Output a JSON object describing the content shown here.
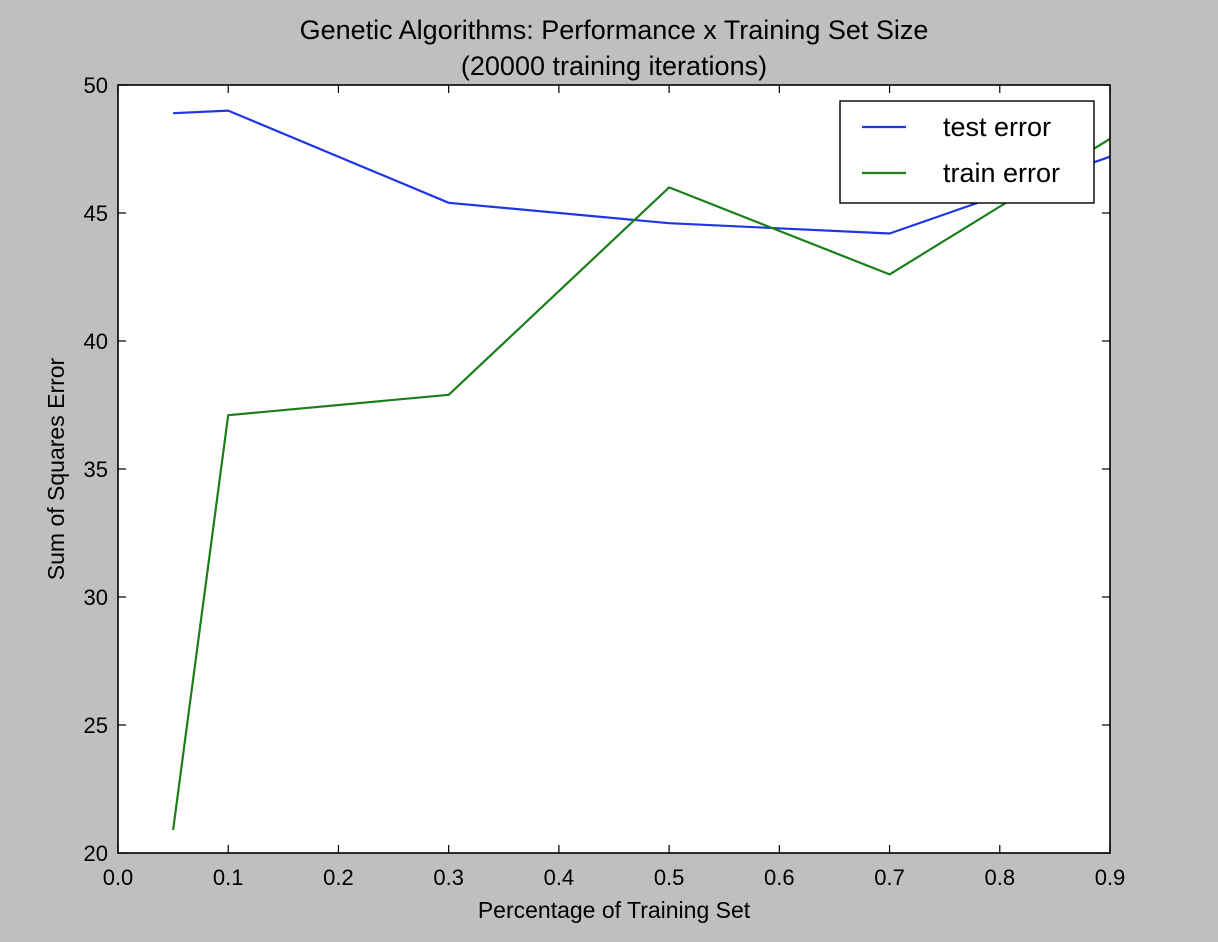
{
  "chart_data": {
    "type": "line",
    "title": "Genetic Algorithms: Performance x Training Set Size",
    "subtitle": "(20000 training iterations)",
    "xlabel": "Percentage of Training Set",
    "ylabel": "Sum of Squares Error",
    "xlim": [
      0.0,
      0.9
    ],
    "ylim": [
      20,
      50
    ],
    "xticks": [
      "0.0",
      "0.1",
      "0.2",
      "0.3",
      "0.4",
      "0.5",
      "0.6",
      "0.7",
      "0.8",
      "0.9"
    ],
    "yticks": [
      "20",
      "25",
      "30",
      "35",
      "40",
      "45",
      "50"
    ],
    "grid": false,
    "legend_position": "top-right",
    "x": [
      0.05,
      0.1,
      0.3,
      0.5,
      0.7,
      0.9
    ],
    "series": [
      {
        "name": "test error",
        "color": "#1f35e6",
        "values": [
          48.9,
          49.0,
          45.4,
          44.6,
          44.2,
          47.2
        ]
      },
      {
        "name": "train error",
        "color": "#1a7f1a",
        "values": [
          20.9,
          37.1,
          37.9,
          46.0,
          42.6,
          47.9
        ]
      }
    ]
  }
}
